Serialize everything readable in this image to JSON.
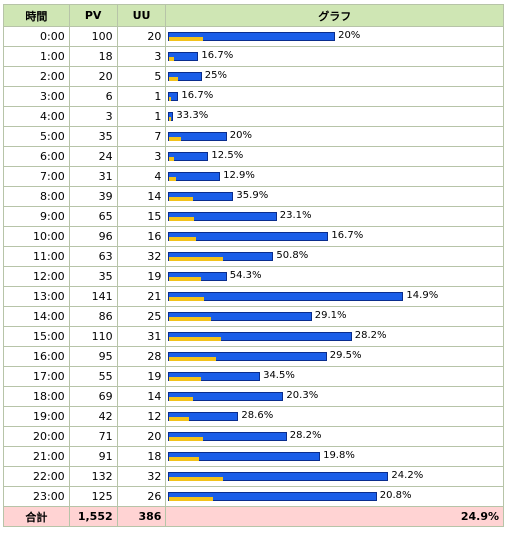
{
  "table": {
    "header": [
      "時間",
      "PV",
      "UU",
      "グラフ"
    ],
    "rows": [
      [
        "0:00",
        100,
        20,
        "20%"
      ],
      [
        "1:00",
        18,
        3,
        "16.7%"
      ],
      [
        "2:00",
        20,
        5,
        "25%"
      ],
      [
        "3:00",
        6,
        1,
        "16.7%"
      ],
      [
        "4:00",
        3,
        1,
        "33.3%"
      ],
      [
        "5:00",
        35,
        7,
        "20%"
      ],
      [
        "6:00",
        24,
        3,
        "12.5%"
      ],
      [
        "7:00",
        31,
        4,
        "12.9%"
      ],
      [
        "8:00",
        39,
        14,
        "35.9%"
      ],
      [
        "9:00",
        65,
        15,
        "23.1%"
      ],
      [
        "10:00",
        96,
        16,
        "16.7%"
      ],
      [
        "11:00",
        63,
        32,
        "50.8%"
      ],
      [
        "12:00",
        35,
        19,
        "54.3%"
      ],
      [
        "13:00",
        141,
        21,
        "14.9%"
      ],
      [
        "14:00",
        86,
        25,
        "29.1%"
      ],
      [
        "15:00",
        110,
        31,
        "28.2%"
      ],
      [
        "16:00",
        95,
        28,
        "29.5%"
      ],
      [
        "17:00",
        55,
        19,
        "34.5%"
      ],
      [
        "18:00",
        69,
        14,
        "20.3%"
      ],
      [
        "19:00",
        42,
        12,
        "28.6%"
      ],
      [
        "20:00",
        71,
        20,
        "28.2%"
      ],
      [
        "21:00",
        91,
        18,
        "19.8%"
      ],
      [
        "22:00",
        132,
        32,
        "24.2%"
      ],
      [
        "23:00",
        125,
        26,
        "20.8%"
      ]
    ],
    "total": [
      "合計",
      "1,552",
      386,
      "24.9%"
    ]
  }
}
